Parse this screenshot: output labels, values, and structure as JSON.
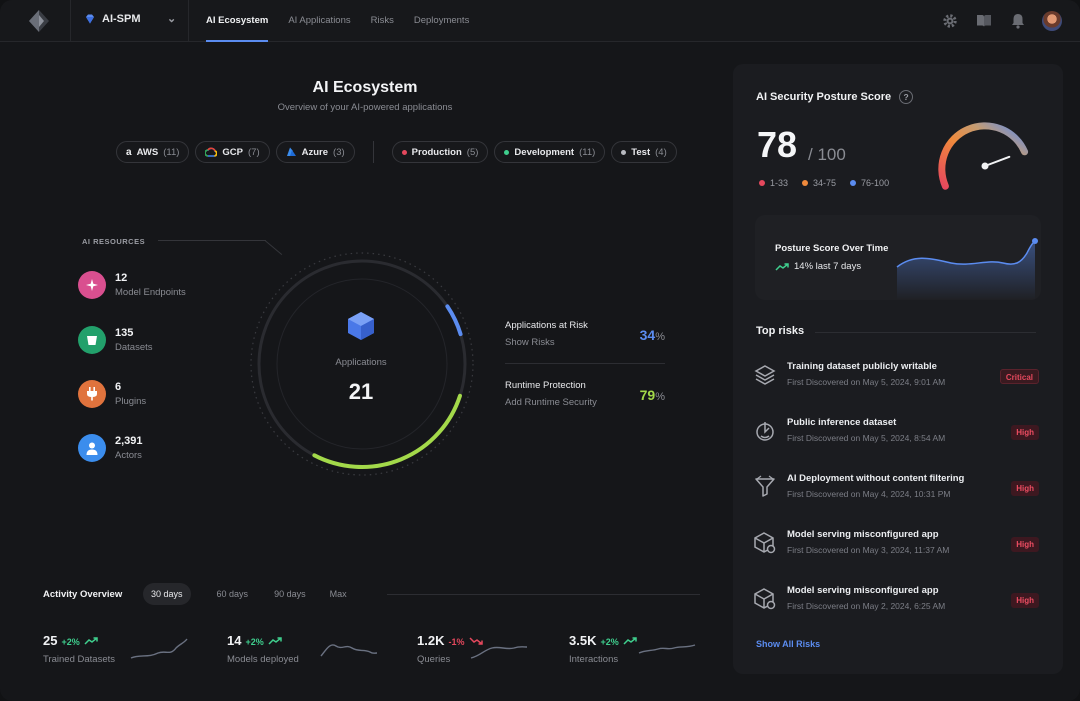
{
  "nav": {
    "workspace": "AI-SPM",
    "tabs": [
      "AI Ecosystem",
      "AI Applications",
      "Risks",
      "Deployments"
    ],
    "active_tab": 0
  },
  "header": {
    "title": "AI Ecosystem",
    "subtitle": "Overview of your AI-powered applications"
  },
  "filters": {
    "clouds": [
      {
        "label": "AWS",
        "count": "(11)"
      },
      {
        "label": "GCP",
        "count": "(7)"
      },
      {
        "label": "Azure",
        "count": "(3)"
      }
    ],
    "envs": [
      {
        "label": "Production",
        "count": "(5)",
        "color": "#e5485d"
      },
      {
        "label": "Development",
        "count": "(11)",
        "color": "#3fcf8e"
      },
      {
        "label": "Test",
        "count": "(4)",
        "color": "#b8bac0"
      }
    ]
  },
  "resources": {
    "label": "AI RESOURCES",
    "items": [
      {
        "value": "12",
        "label": "Model Endpoints",
        "color": "#d94f8f",
        "icon": "sparkle-icon"
      },
      {
        "value": "135",
        "label": "Datasets",
        "color": "#22a06b",
        "icon": "bucket-icon"
      },
      {
        "value": "6",
        "label": "Plugins",
        "color": "#e0733d",
        "icon": "plug-icon"
      },
      {
        "value": "2,391",
        "label": "Actors",
        "color": "#3b8ded",
        "icon": "user-icon"
      }
    ]
  },
  "applications": {
    "label": "Applications",
    "count": "21",
    "risk_fraction": 0.34,
    "runtime_fraction": 0.79
  },
  "metrics": [
    {
      "title": "Applications at Risk",
      "link": "Show Risks",
      "value": "34",
      "pct": "%",
      "color": "#5b8cf0"
    },
    {
      "title": "Runtime Protection",
      "link": "Add Runtime Security",
      "value": "79",
      "pct": "%",
      "color": "#a3d94a"
    }
  ],
  "activity": {
    "title": "Activity Overview",
    "ranges": [
      "30 days",
      "60 days",
      "90 days",
      "Max"
    ],
    "active_range": 0,
    "stats": [
      {
        "value": "25",
        "delta": "+2%",
        "direction": "up",
        "label": "Trained Datasets"
      },
      {
        "value": "14",
        "delta": "+2%",
        "direction": "up",
        "label": "Models deployed"
      },
      {
        "value": "1.2K",
        "delta": "-1%",
        "direction": "down",
        "label": "Queries"
      },
      {
        "value": "3.5K",
        "delta": "+2%",
        "direction": "up",
        "label": "Interactions"
      }
    ]
  },
  "posture": {
    "title": "AI Security Posture Score",
    "help": "?",
    "score": "78",
    "max": "/ 100",
    "score_fraction": 0.78,
    "legend": [
      {
        "label": "1-33",
        "color": "#e5485d"
      },
      {
        "label": "34-75",
        "color": "#f08a3c"
      },
      {
        "label": "76-100",
        "color": "#5b8cf0"
      }
    ],
    "trend": {
      "title": "Posture Score Over Time",
      "change": "14% last 7 days",
      "end_value": "78"
    }
  },
  "top_risks": {
    "title": "Top risks",
    "items": [
      {
        "name": "Training dataset publicly writable",
        "date": "First Discovered on May 5, 2024, 9:01 AM",
        "severity": "Critical",
        "icon": "layers-icon"
      },
      {
        "name": "Public inference dataset",
        "date": "First Discovered on May 5, 2024, 8:54 AM",
        "severity": "High",
        "icon": "inference-icon"
      },
      {
        "name": "AI Deployment without content filtering",
        "date": "First Discovered on May 4, 2024, 10:31 PM",
        "severity": "High",
        "icon": "filter-icon"
      },
      {
        "name": "Model serving misconfigured app",
        "date": "First Discovered on May 3, 2024, 11:37 AM",
        "severity": "High",
        "icon": "cube-gear-icon"
      },
      {
        "name": "Model serving misconfigured app",
        "date": "First Discovered on May 2, 2024, 6:25 AM",
        "severity": "High",
        "icon": "cube-gear-icon"
      }
    ],
    "show_all": "Show All Risks"
  }
}
